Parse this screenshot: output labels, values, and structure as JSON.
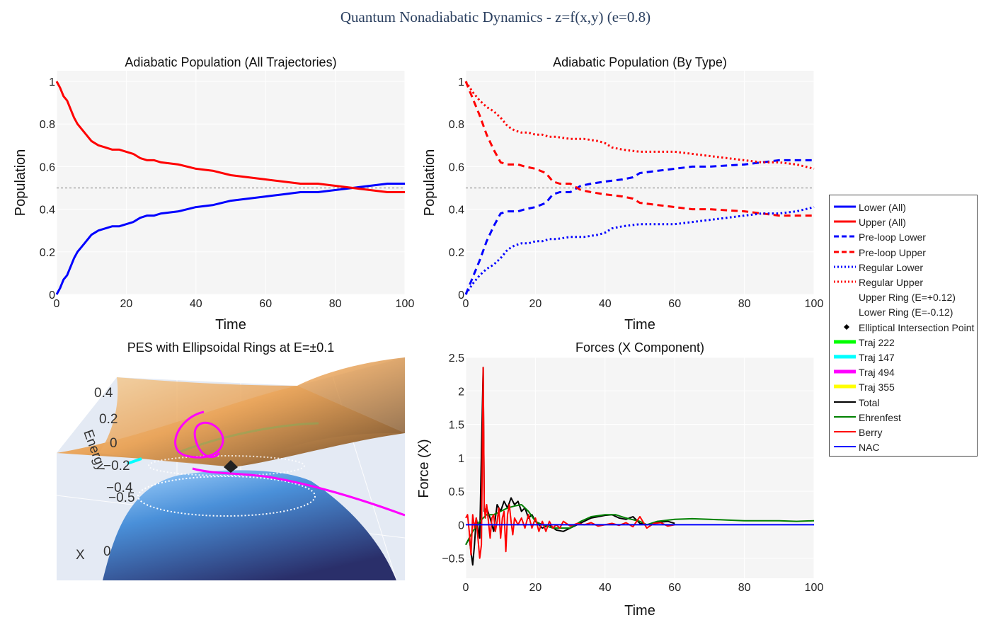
{
  "title": "Quantum Nonadiabatic Dynamics - z=f(x,y) (e=0.8)",
  "colors": {
    "lower": "#0000ff",
    "upper": "#ff0000",
    "plot_bg": "#f5f5f5",
    "title": "#2a3f5f"
  },
  "panels": {
    "pop_all": {
      "title": "Adiabatic Population (All Trajectories)",
      "xlabel": "Time",
      "ylabel": "Population"
    },
    "pop_type": {
      "title": "Adiabatic Population (By Type)",
      "xlabel": "Time",
      "ylabel": "Population"
    },
    "pes": {
      "title": "PES with Ellipsoidal Rings at E=±0.1",
      "zlabel": "Energy",
      "xlabel": "X",
      "z_ticks": [
        "0.4",
        "0.2",
        "0",
        "−0.2",
        "−0.4",
        "−0.5"
      ],
      "x_tick": "0"
    },
    "forces": {
      "title": "Forces (X Component)",
      "xlabel": "Time",
      "ylabel": "Force (X)"
    }
  },
  "legend": [
    {
      "label": "Lower (All)",
      "color": "#0000ff",
      "style": "solid",
      "width": 3
    },
    {
      "label": "Upper (All)",
      "color": "#ff0000",
      "style": "solid",
      "width": 3
    },
    {
      "label": "Pre-loop Lower",
      "color": "#0000ff",
      "style": "dash",
      "width": 3
    },
    {
      "label": "Pre-loop Upper",
      "color": "#ff0000",
      "style": "dash",
      "width": 3
    },
    {
      "label": "Regular Lower",
      "color": "#0000ff",
      "style": "dot",
      "width": 3
    },
    {
      "label": "Regular Upper",
      "color": "#ff0000",
      "style": "dot",
      "width": 3
    },
    {
      "label": "Upper Ring (E=+0.12)",
      "color": "#ffffff",
      "style": "dot",
      "width": 3
    },
    {
      "label": "Lower Ring (E=-0.12)",
      "color": "#ffffff",
      "style": "dot",
      "width": 3
    },
    {
      "label": "Elliptical Intersection Point",
      "color": "#000000",
      "style": "marker",
      "width": 3
    },
    {
      "label": "Traj 222",
      "color": "#00ff00",
      "style": "solid",
      "width": 5
    },
    {
      "label": "Traj 147",
      "color": "#00ffff",
      "style": "solid",
      "width": 5
    },
    {
      "label": "Traj 494",
      "color": "#ff00ff",
      "style": "solid",
      "width": 5
    },
    {
      "label": "Traj 355",
      "color": "#ffff00",
      "style": "solid",
      "width": 5
    },
    {
      "label": "Total",
      "color": "#000000",
      "style": "solid",
      "width": 2
    },
    {
      "label": "Ehrenfest",
      "color": "#008000",
      "style": "solid",
      "width": 2
    },
    {
      "label": "Berry",
      "color": "#ff0000",
      "style": "solid",
      "width": 2
    },
    {
      "label": "NAC",
      "color": "#0000ff",
      "style": "solid",
      "width": 2
    }
  ],
  "chart_data": [
    {
      "type": "line",
      "title": "Adiabatic Population (All Trajectories)",
      "xlabel": "Time",
      "ylabel": "Population",
      "xlim": [
        0,
        100
      ],
      "ylim": [
        0,
        1.05
      ],
      "grid": true,
      "x_ticks": [
        0,
        20,
        40,
        60,
        80,
        100
      ],
      "y_ticks": [
        0,
        0.2,
        0.4,
        0.6,
        0.8,
        1
      ],
      "y_tick_labels": [
        "0",
        "0.2",
        "0.4",
        "0.6",
        "0.8",
        "1"
      ],
      "reference_line": 0.5,
      "series": [
        {
          "name": "Lower (All)",
          "color": "#0000ff",
          "style": "solid",
          "x": [
            0,
            1,
            2,
            3,
            4,
            5,
            6,
            8,
            10,
            12,
            14,
            16,
            18,
            20,
            22,
            24,
            26,
            28,
            30,
            35,
            40,
            45,
            50,
            55,
            60,
            65,
            70,
            75,
            80,
            85,
            90,
            95,
            100
          ],
          "y": [
            0,
            0.03,
            0.07,
            0.09,
            0.13,
            0.17,
            0.2,
            0.24,
            0.28,
            0.3,
            0.31,
            0.32,
            0.32,
            0.33,
            0.34,
            0.36,
            0.37,
            0.37,
            0.38,
            0.39,
            0.41,
            0.42,
            0.44,
            0.45,
            0.46,
            0.47,
            0.48,
            0.48,
            0.49,
            0.5,
            0.51,
            0.52,
            0.52
          ]
        },
        {
          "name": "Upper (All)",
          "color": "#ff0000",
          "style": "solid",
          "x": [
            0,
            1,
            2,
            3,
            4,
            5,
            6,
            8,
            10,
            12,
            14,
            16,
            18,
            20,
            22,
            24,
            26,
            28,
            30,
            35,
            40,
            45,
            50,
            55,
            60,
            65,
            70,
            75,
            80,
            85,
            90,
            95,
            100
          ],
          "y": [
            1,
            0.97,
            0.93,
            0.91,
            0.87,
            0.83,
            0.8,
            0.76,
            0.72,
            0.7,
            0.69,
            0.68,
            0.68,
            0.67,
            0.66,
            0.64,
            0.63,
            0.63,
            0.62,
            0.61,
            0.59,
            0.58,
            0.56,
            0.55,
            0.54,
            0.53,
            0.52,
            0.52,
            0.51,
            0.5,
            0.49,
            0.48,
            0.48
          ]
        }
      ]
    },
    {
      "type": "line",
      "title": "Adiabatic Population (By Type)",
      "xlabel": "Time",
      "ylabel": "Population",
      "xlim": [
        0,
        100
      ],
      "ylim": [
        0,
        1.05
      ],
      "grid": true,
      "x_ticks": [
        0,
        20,
        40,
        60,
        80,
        100
      ],
      "y_ticks": [
        0,
        0.2,
        0.4,
        0.6,
        0.8,
        1
      ],
      "y_tick_labels": [
        "0",
        "0.2",
        "0.4",
        "0.6",
        "0.8",
        "1"
      ],
      "reference_line": 0.5,
      "series": [
        {
          "name": "Pre-loop Lower",
          "color": "#0000ff",
          "style": "dash",
          "x": [
            0,
            2,
            4,
            6,
            8,
            10,
            12,
            15,
            17,
            20,
            23,
            25,
            27,
            30,
            33,
            36,
            40,
            45,
            48,
            50,
            55,
            60,
            65,
            70,
            80,
            85,
            90,
            95,
            100
          ],
          "y": [
            0,
            0.08,
            0.16,
            0.25,
            0.32,
            0.38,
            0.39,
            0.39,
            0.4,
            0.41,
            0.43,
            0.47,
            0.48,
            0.48,
            0.51,
            0.52,
            0.53,
            0.54,
            0.55,
            0.57,
            0.58,
            0.59,
            0.6,
            0.6,
            0.61,
            0.62,
            0.63,
            0.63,
            0.63
          ]
        },
        {
          "name": "Pre-loop Upper",
          "color": "#ff0000",
          "style": "dash",
          "x": [
            0,
            2,
            4,
            6,
            8,
            10,
            12,
            15,
            17,
            20,
            23,
            25,
            27,
            30,
            33,
            36,
            40,
            45,
            48,
            50,
            55,
            60,
            65,
            70,
            80,
            85,
            90,
            95,
            100
          ],
          "y": [
            1,
            0.92,
            0.84,
            0.75,
            0.68,
            0.62,
            0.61,
            0.61,
            0.6,
            0.59,
            0.57,
            0.53,
            0.52,
            0.52,
            0.49,
            0.48,
            0.47,
            0.46,
            0.45,
            0.43,
            0.42,
            0.41,
            0.4,
            0.4,
            0.39,
            0.38,
            0.37,
            0.37,
            0.37
          ]
        },
        {
          "name": "Regular Lower",
          "color": "#0000ff",
          "style": "dot",
          "x": [
            0,
            2,
            4,
            6,
            8,
            10,
            12,
            14,
            16,
            18,
            20,
            22,
            24,
            26,
            30,
            34,
            38,
            40,
            42,
            45,
            50,
            55,
            60,
            65,
            70,
            75,
            80,
            85,
            90,
            95,
            100
          ],
          "y": [
            0,
            0.05,
            0.09,
            0.12,
            0.14,
            0.17,
            0.21,
            0.23,
            0.24,
            0.24,
            0.25,
            0.25,
            0.26,
            0.26,
            0.27,
            0.27,
            0.28,
            0.29,
            0.31,
            0.32,
            0.33,
            0.33,
            0.33,
            0.34,
            0.35,
            0.36,
            0.37,
            0.38,
            0.38,
            0.39,
            0.41
          ]
        },
        {
          "name": "Regular Upper",
          "color": "#ff0000",
          "style": "dot",
          "x": [
            0,
            2,
            4,
            6,
            8,
            10,
            12,
            14,
            16,
            18,
            20,
            22,
            24,
            26,
            30,
            34,
            38,
            40,
            42,
            45,
            50,
            55,
            60,
            65,
            70,
            75,
            80,
            85,
            90,
            95,
            100
          ],
          "y": [
            1,
            0.95,
            0.91,
            0.88,
            0.86,
            0.83,
            0.79,
            0.77,
            0.76,
            0.76,
            0.75,
            0.75,
            0.74,
            0.74,
            0.73,
            0.73,
            0.72,
            0.71,
            0.69,
            0.68,
            0.67,
            0.67,
            0.67,
            0.66,
            0.65,
            0.64,
            0.63,
            0.62,
            0.62,
            0.61,
            0.59
          ]
        }
      ]
    },
    {
      "type": "line",
      "title": "Forces (X Component)",
      "xlabel": "Time",
      "ylabel": "Force (X)",
      "xlim": [
        0,
        100
      ],
      "ylim": [
        -0.8,
        2.5
      ],
      "grid": true,
      "x_ticks": [
        0,
        20,
        40,
        60,
        80,
        100
      ],
      "y_ticks": [
        -0.5,
        0,
        0.5,
        1,
        1.5,
        2,
        2.5
      ],
      "y_tick_labels": [
        "−0.5",
        "0",
        "0.5",
        "1",
        "1.5",
        "2",
        "2.5"
      ],
      "series": [
        {
          "name": "Total",
          "color": "#000000",
          "style": "solid",
          "x": [
            0,
            1,
            2,
            2.5,
            3,
            4,
            5,
            5.3,
            6,
            7,
            8,
            9,
            10,
            11,
            12,
            13,
            14,
            15,
            16,
            17,
            18,
            19,
            20,
            22,
            24,
            26,
            28,
            30,
            32,
            34,
            36,
            38,
            40,
            42,
            44,
            46,
            48,
            50,
            52,
            54,
            56,
            58,
            60
          ],
          "y": [
            -0.3,
            -0.2,
            -0.6,
            -0.3,
            0.1,
            -0.2,
            2.35,
            0.2,
            0.25,
            0.1,
            -0.1,
            0.3,
            0.2,
            0.35,
            0.25,
            0.4,
            0.3,
            0.35,
            0.2,
            0.25,
            0.1,
            0.15,
            0.05,
            -0.05,
            0.0,
            -0.08,
            -0.1,
            -0.05,
            0.0,
            0.05,
            0.1,
            0.12,
            0.14,
            0.15,
            0.1,
            0.08,
            0.12,
            0.02,
            0.0,
            0.03,
            0.04,
            0.05,
            0.02
          ]
        },
        {
          "name": "Ehrenfest",
          "color": "#008000",
          "style": "solid",
          "x": [
            0,
            2,
            4,
            6,
            8,
            10,
            12,
            14,
            16,
            18,
            20,
            22,
            25,
            28,
            30,
            33,
            36,
            40,
            43,
            46,
            50,
            52,
            55,
            60,
            65,
            70,
            75,
            80,
            85,
            90,
            95,
            100
          ],
          "y": [
            -0.3,
            -0.1,
            0.05,
            0.15,
            0.15,
            0.2,
            0.25,
            0.28,
            0.3,
            0.2,
            0.05,
            0.0,
            -0.05,
            -0.05,
            -0.05,
            0.05,
            0.12,
            0.15,
            0.15,
            0.1,
            0.05,
            0.0,
            0.05,
            0.08,
            0.09,
            0.08,
            0.07,
            0.06,
            0.06,
            0.06,
            0.05,
            0.06
          ]
        },
        {
          "name": "Berry",
          "color": "#ff0000",
          "style": "solid",
          "x": [
            0,
            0.5,
            1,
            1.5,
            2,
            2.5,
            3,
            3.5,
            4,
            4.5,
            5,
            5.3,
            5.6,
            6,
            6.5,
            7,
            7.5,
            8,
            8.5,
            9,
            9.5,
            10,
            10.5,
            11,
            11.5,
            12,
            12.5,
            13,
            13.5,
            14,
            15,
            16,
            17,
            18,
            19,
            20,
            21,
            22,
            23,
            24,
            25,
            26,
            27,
            28,
            30,
            32,
            34,
            36,
            38,
            40,
            42,
            44,
            46,
            48,
            50,
            52,
            54,
            56,
            58,
            60
          ],
          "y": [
            0.1,
            0.15,
            -0.1,
            -0.45,
            0.15,
            -0.05,
            0.1,
            -0.2,
            -0.5,
            -0.3,
            2.35,
            0.3,
            0.1,
            0.3,
            0.05,
            -0.2,
            0.1,
            0.15,
            -0.1,
            0.05,
            0.25,
            -0.2,
            0.1,
            0.2,
            -0.4,
            0.15,
            0.3,
            0.05,
            -0.15,
            0.1,
            0.0,
            0.1,
            -0.05,
            0.15,
            -0.05,
            0.1,
            -0.1,
            0.05,
            -0.1,
            0.05,
            -0.05,
            0.0,
            -0.05,
            0.05,
            -0.02,
            0.02,
            0.0,
            0.03,
            -0.02,
            0.0,
            0.02,
            -0.01,
            0.03,
            -0.03,
            0.12,
            -0.05,
            0.02,
            0.03,
            -0.02,
            0.0
          ]
        },
        {
          "name": "NAC",
          "color": "#0000ff",
          "style": "solid",
          "x": [
            0,
            100
          ],
          "y": [
            0,
            0
          ]
        }
      ]
    }
  ]
}
